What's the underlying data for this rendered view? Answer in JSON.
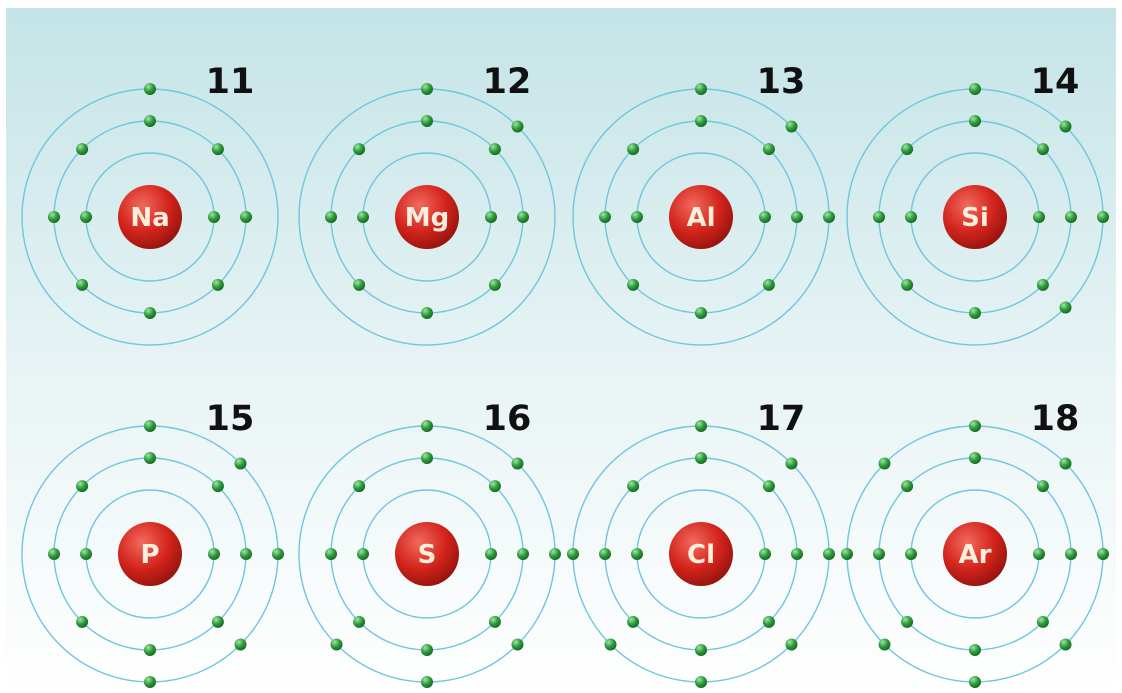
{
  "diagram": {
    "atoms": [
      {
        "symbol": "Na",
        "number": "11",
        "shells": [
          2,
          8,
          1
        ]
      },
      {
        "symbol": "Mg",
        "number": "12",
        "shells": [
          2,
          8,
          2
        ]
      },
      {
        "symbol": "Al",
        "number": "13",
        "shells": [
          2,
          8,
          3
        ]
      },
      {
        "symbol": "Si",
        "number": "14",
        "shells": [
          2,
          8,
          4
        ]
      },
      {
        "symbol": "P",
        "number": "15",
        "shells": [
          2,
          8,
          5
        ]
      },
      {
        "symbol": "S",
        "number": "16",
        "shells": [
          2,
          8,
          6
        ]
      },
      {
        "symbol": "Cl",
        "number": "17",
        "shells": [
          2,
          8,
          7
        ]
      },
      {
        "symbol": "Ar",
        "number": "18",
        "shells": [
          2,
          8,
          8
        ]
      }
    ],
    "colors": {
      "background_top": "#c4e4e7",
      "background_bottom": "#ffffff",
      "orbit": "#6fc6de",
      "nucleus": "#d3241c",
      "nucleus_highlight": "#f26a5e",
      "electron": "#2e9a3c",
      "electron_highlight": "#9fe6a2",
      "number_text": "#111111",
      "symbol_text": "#fbeedd"
    }
  }
}
